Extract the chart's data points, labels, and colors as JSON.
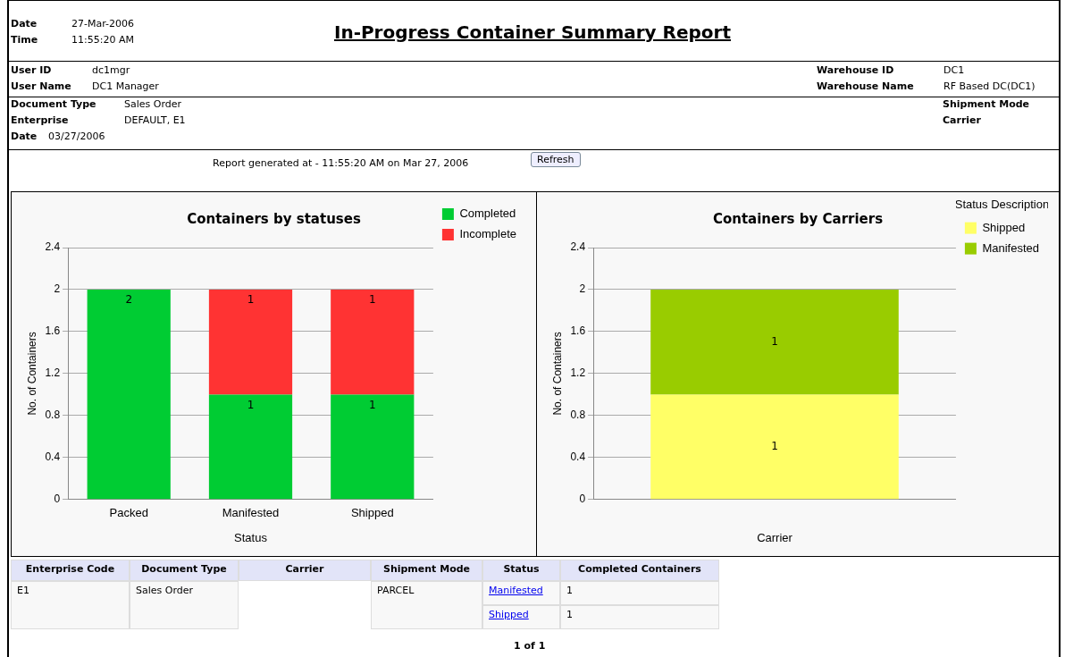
{
  "chart_data": [
    {
      "type": "other",
      "title": "In-Progress Container Summary Report",
      "annotations": [
        "Date",
        "27-Mar-2006",
        "Time",
        "11:55:20 AM",
        "User ID",
        "dc1mgr",
        "User Name",
        "DC1 Manager",
        "Warehouse ID",
        "DC1",
        "Warehouse Name",
        "RF Based DC(DC1)",
        "Document Type",
        "Sales Order",
        "Enterprise",
        "DEFAULT, E1",
        "Date",
        "03/27/2006",
        "Shipment Mode",
        "Carrier",
        "Report generated at - 11:55:20 AM on Mar 27, 2006",
        "Refresh",
        "Enterprise Code",
        "Document Type",
        "Carrier",
        "Shipment Mode",
        "Status",
        "Completed Containers",
        "E1",
        "Sales Order",
        "PARCEL",
        "Manifested",
        "1",
        "Shipped",
        "1",
        "1 of 1"
      ]
    },
    {
      "type": "bar",
      "title": "Containers by statuses",
      "xlabel": "Status",
      "ylabel": "No. of Containers",
      "categories": [
        "Packed",
        "Manifested",
        "Shipped"
      ],
      "stacked": true,
      "ylim": [
        0,
        2.4
      ],
      "yticks": [
        0,
        0.4,
        0.8,
        1.2,
        1.6,
        2,
        2.4
      ],
      "grid": "y",
      "legend": "top right",
      "series": [
        {
          "name": "Completed",
          "color": "#00cc33",
          "values": [
            2,
            1,
            1
          ],
          "value_labels": [
            "2",
            "1",
            "1"
          ]
        },
        {
          "name": "Incomplete",
          "color": "#ff3333",
          "values": [
            0,
            1,
            1
          ],
          "value_labels": [
            null,
            "1",
            "1"
          ]
        }
      ]
    },
    {
      "type": "bar",
      "title": "Containers by Carriers",
      "xlabel": "Carrier",
      "ylabel": "No. of Containers",
      "legend_title": "Status Description",
      "categories": [
        null
      ],
      "stacked": true,
      "ylim": [
        0,
        2.4
      ],
      "yticks": [
        0,
        0.4,
        0.8,
        1.2,
        1.6,
        2,
        2.4
      ],
      "grid": "y",
      "legend": "top right",
      "data_labels": true,
      "series": [
        {
          "name": "Shipped",
          "color": "#ffff66",
          "values": [
            1
          ]
        },
        {
          "name": "Manifested",
          "color": "#99cc00",
          "values": [
            1
          ]
        }
      ]
    }
  ]
}
